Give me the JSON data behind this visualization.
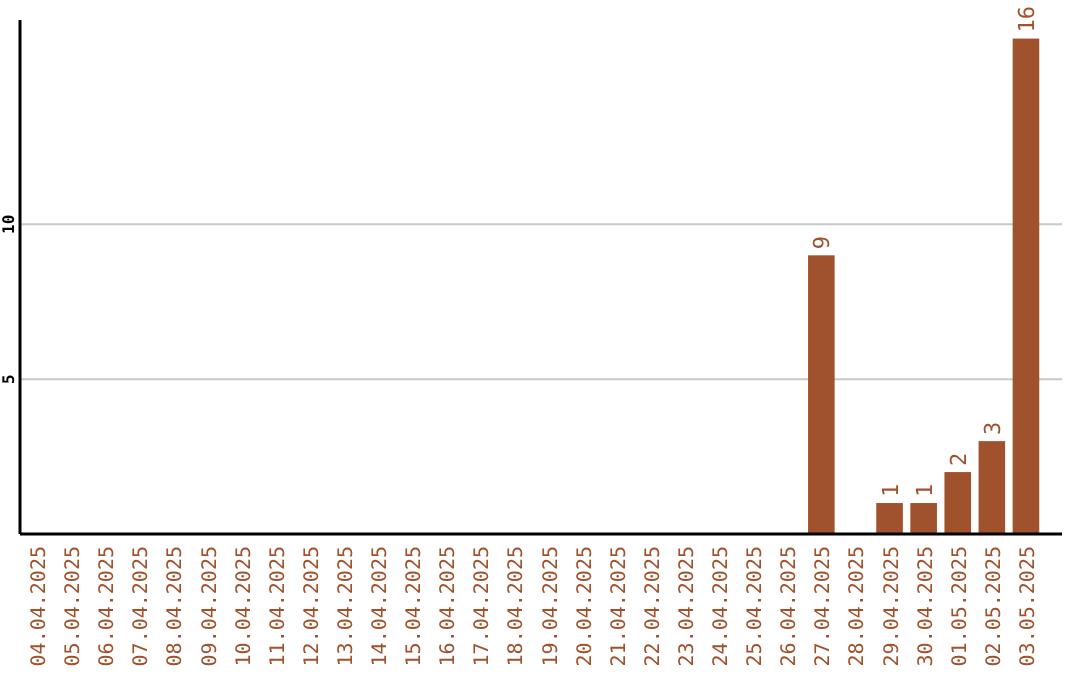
{
  "chart_data": {
    "type": "bar",
    "categories": [
      "04.04.2025",
      "05.04.2025",
      "06.04.2025",
      "07.04.2025",
      "08.04.2025",
      "09.04.2025",
      "10.04.2025",
      "11.04.2025",
      "12.04.2025",
      "13.04.2025",
      "14.04.2025",
      "15.04.2025",
      "16.04.2025",
      "17.04.2025",
      "18.04.2025",
      "19.04.2025",
      "20.04.2025",
      "21.04.2025",
      "22.04.2025",
      "23.04.2025",
      "24.04.2025",
      "25.04.2025",
      "26.04.2025",
      "27.04.2025",
      "28.04.2025",
      "29.04.2025",
      "30.04.2025",
      "01.05.2025",
      "02.05.2025",
      "03.05.2025"
    ],
    "values": [
      0,
      0,
      0,
      0,
      0,
      0,
      0,
      0,
      0,
      0,
      0,
      0,
      0,
      0,
      0,
      0,
      0,
      0,
      0,
      0,
      0,
      0,
      0,
      9,
      0,
      1,
      1,
      2,
      3,
      16
    ],
    "value_labels": [
      null,
      null,
      null,
      null,
      null,
      null,
      null,
      null,
      null,
      null,
      null,
      null,
      null,
      null,
      null,
      null,
      null,
      null,
      null,
      null,
      null,
      null,
      null,
      "9",
      null,
      "1",
      "1",
      "2",
      "3",
      "16"
    ],
    "color": "#a0522d",
    "ylim": [
      0,
      16.6
    ],
    "yticks": [
      5,
      10
    ],
    "grid": "y"
  }
}
